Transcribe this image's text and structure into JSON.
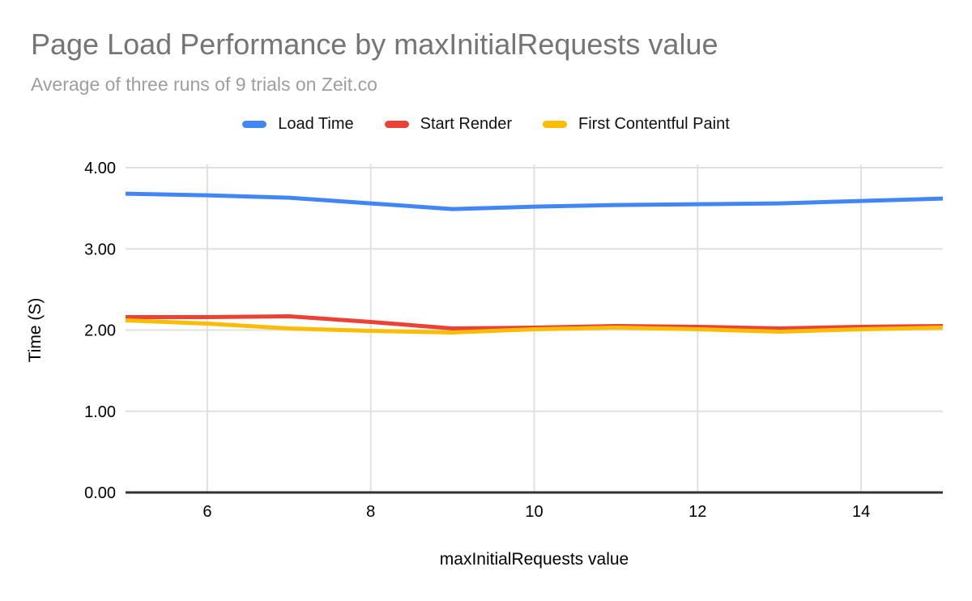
{
  "chart_data": {
    "type": "line",
    "title": "Page Load Performance by maxInitialRequests value",
    "subtitle": "Average of three runs of 9 trials on Zeit.co",
    "xlabel": "maxInitialRequests value",
    "ylabel": "Time (S)",
    "x": [
      5,
      6,
      7,
      8,
      9,
      10,
      11,
      12,
      13,
      14,
      15
    ],
    "series": [
      {
        "name": "Load Time",
        "color": "#4285F4",
        "values": [
          3.68,
          3.66,
          3.63,
          3.56,
          3.49,
          3.52,
          3.54,
          3.55,
          3.56,
          3.59,
          3.62
        ]
      },
      {
        "name": "Start Render",
        "color": "#EA4335",
        "values": [
          2.16,
          2.16,
          2.17,
          2.1,
          2.02,
          2.03,
          2.05,
          2.04,
          2.02,
          2.04,
          2.05
        ]
      },
      {
        "name": "First Contentful Paint",
        "color": "#FBBC04",
        "values": [
          2.12,
          2.08,
          2.02,
          1.99,
          1.97,
          2.01,
          2.03,
          2.01,
          1.98,
          2.01,
          2.03
        ]
      }
    ],
    "xlim": [
      5,
      15
    ],
    "ylim": [
      0,
      4
    ],
    "x_ticks": [
      "6",
      "8",
      "10",
      "12",
      "14"
    ],
    "y_ticks": [
      "0.00",
      "1.00",
      "2.00",
      "3.00",
      "4.00"
    ],
    "grid": true,
    "legend_position": "top"
  },
  "colors": {
    "title_text": "#757575",
    "subtitle_text": "#9E9E9E",
    "gridline": "#E0E0E0",
    "axis_line": "#333333",
    "tick_text": "#000000",
    "background": "#FFFFFF"
  }
}
